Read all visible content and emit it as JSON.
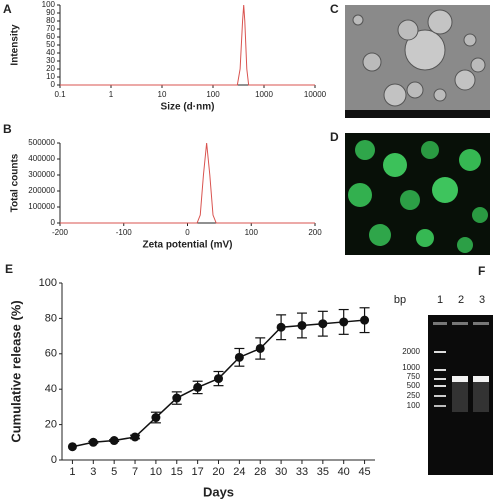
{
  "chart_data": [
    {
      "type": "line",
      "label": "A",
      "x_label": "Size (d·nm)",
      "y_label": "Intensity",
      "xscale": "log",
      "x": [
        0.1,
        300,
        340,
        380,
        400,
        420,
        460,
        500,
        10000
      ],
      "values": [
        0,
        0,
        20,
        80,
        100,
        80,
        20,
        0,
        0
      ],
      "color": "#d9534f",
      "xlim": [
        0.1,
        10000
      ],
      "xticks": [
        0.1,
        1,
        10,
        100,
        1000,
        10000
      ],
      "ylim": [
        0,
        100
      ],
      "yticks": [
        0,
        10,
        20,
        30,
        40,
        50,
        60,
        70,
        80,
        90,
        100
      ]
    },
    {
      "type": "line",
      "label": "B",
      "x_label": "Zeta potential (mV)",
      "y_label": "Total counts",
      "x": [
        -200,
        15,
        20,
        25,
        30,
        35,
        40,
        45,
        200
      ],
      "values": [
        0,
        0,
        50000,
        300000,
        500000,
        300000,
        50000,
        0,
        0
      ],
      "color": "#d9534f",
      "xlim": [
        -200,
        200
      ],
      "xticks": [
        -200,
        -100,
        0,
        100,
        200
      ],
      "ylim": [
        0,
        500000
      ],
      "yticks": [
        0,
        100000,
        200000,
        300000,
        400000,
        500000
      ]
    },
    {
      "type": "errorline",
      "label": "E",
      "x_label": "Days",
      "y_label": "Cumulative release (%)",
      "categories": [
        "1",
        "3",
        "5",
        "7",
        "10",
        "15",
        "17",
        "20",
        "24",
        "28",
        "30",
        "33",
        "35",
        "40",
        "45"
      ],
      "values": [
        7.5,
        10,
        11,
        13,
        24,
        35,
        41,
        46,
        58,
        63,
        75,
        76,
        77,
        78,
        79
      ],
      "errors": [
        0,
        0.5,
        0.5,
        1,
        3,
        3.5,
        3.5,
        4,
        5,
        6,
        7,
        7,
        7,
        7,
        7
      ],
      "color": "#111111",
      "ylim": [
        0,
        100
      ],
      "yticks": [
        0,
        20,
        40,
        60,
        80,
        100
      ]
    }
  ],
  "panels": {
    "c": "C",
    "d": "D",
    "f": "F"
  },
  "gel": {
    "unit": "bp",
    "lanes": [
      "1",
      "2",
      "3"
    ],
    "markers": [
      "2000",
      "1000",
      "750",
      "500",
      "250",
      "100"
    ]
  }
}
